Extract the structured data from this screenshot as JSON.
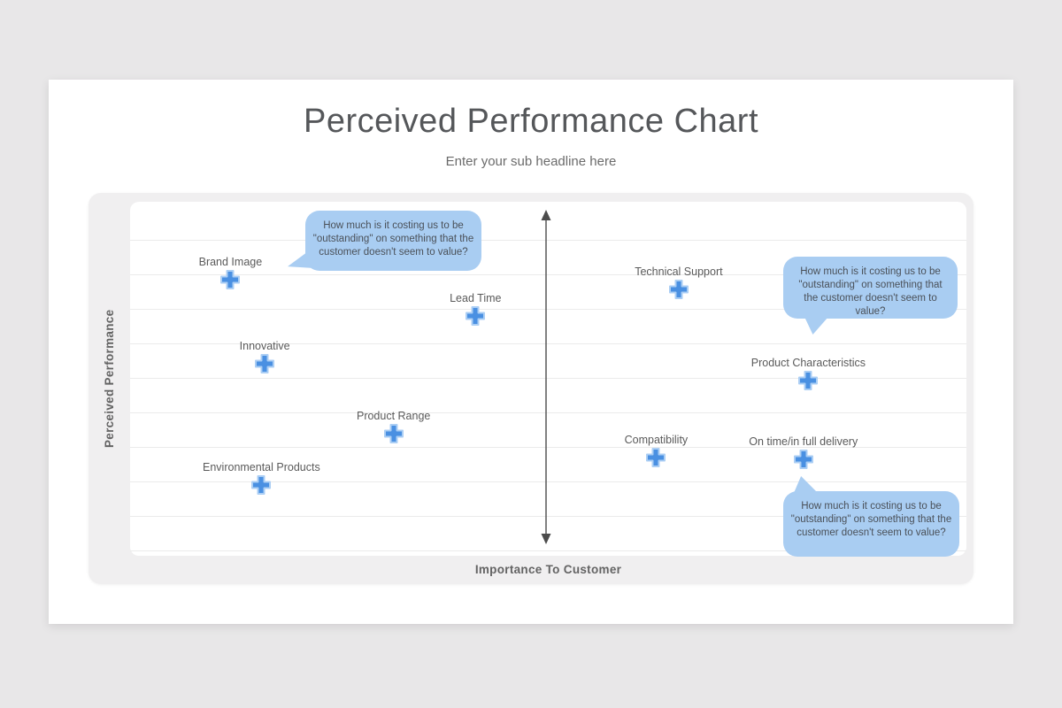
{
  "slide": {
    "title": "Perceived Performance Chart",
    "subtitle": "Enter your sub headline here"
  },
  "chart_data": {
    "type": "scatter",
    "title": "Perceived Performance Chart",
    "xlabel": "Importance To Customer",
    "ylabel": "Perceived Performance",
    "xlim": [
      0,
      100
    ],
    "ylim": [
      0,
      100
    ],
    "axes_tick_labels": "none",
    "grid": "horizontal-only",
    "legend": "none",
    "marker": {
      "shape": "plus",
      "color": "#4a90e2",
      "halo_color": "#abcef4"
    },
    "callout_bg_color": "#a9cdf2",
    "points": [
      {
        "label": "Brand Image",
        "x": 12.0,
        "y": 78.0
      },
      {
        "label": "Lead Time",
        "x": 41.3,
        "y": 67.8
      },
      {
        "label": "Innovative",
        "x": 16.1,
        "y": 54.3
      },
      {
        "label": "Product Range",
        "x": 31.5,
        "y": 34.5
      },
      {
        "label": "Environmental Products",
        "x": 15.7,
        "y": 20.0
      },
      {
        "label": "Technical Support",
        "x": 65.6,
        "y": 75.3
      },
      {
        "label": "Product Characteristics",
        "x": 81.1,
        "y": 49.5
      },
      {
        "label": "Compatibility",
        "x": 62.9,
        "y": 27.8
      },
      {
        "label": "On time/in full delivery",
        "x": 80.5,
        "y": 27.3
      }
    ],
    "callouts": [
      {
        "text": "How much is it costing us to be \"outstanding\" on something that the customer doesn't seem to value?",
        "anchor": "Brand Image"
      },
      {
        "text": "How much is it costing us to be \"outstanding\" on something that the customer doesn't seem to value?",
        "anchor": "Product Characteristics"
      },
      {
        "text": "How much is it costing us to be \"outstanding\" on something that the customer doesn't seem to value?",
        "anchor": "On time/in full delivery"
      }
    ]
  }
}
